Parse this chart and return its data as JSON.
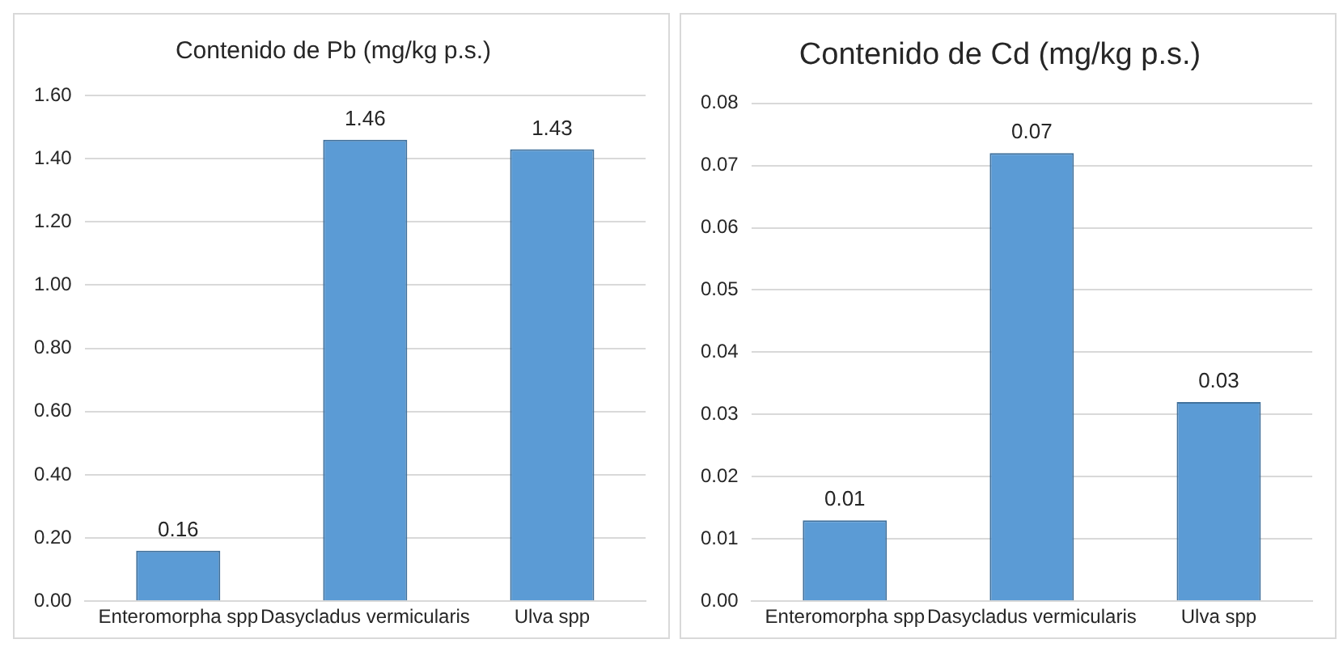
{
  "chart_data": [
    {
      "type": "bar",
      "title": "Contenido de Pb (mg/kg p.s.)",
      "categories": [
        "Enteromorpha spp",
        "Dasycladus vermicularis",
        "Ulva spp"
      ],
      "values": [
        0.16,
        1.46,
        1.43
      ],
      "color": "#5b9bd5",
      "data_labels": true,
      "ylim": [
        0,
        1.6
      ],
      "yticks": [
        {
          "value": 0,
          "label": "0.00"
        },
        {
          "value": 0.2,
          "label": "0.20"
        },
        {
          "value": 0.4,
          "label": "0.40"
        },
        {
          "value": 0.6,
          "label": "0.60"
        },
        {
          "value": 0.8,
          "label": "0.80"
        },
        {
          "value": 1,
          "label": "1.00"
        },
        {
          "value": 1.2,
          "label": "1.20"
        },
        {
          "value": 1.4,
          "label": "1.40"
        },
        {
          "value": 1.6,
          "label": "1.60"
        }
      ],
      "grid": "y"
    },
    {
      "type": "bar",
      "title": "Contenido de Cd (mg/kg p.s.)",
      "categories": [
        "Enteromorpha spp",
        "Dasycladus vermicularis",
        "Ulva spp"
      ],
      "values": [
        0.013,
        0.072,
        0.032
      ],
      "value_labels": [
        "0.01",
        "0.07",
        "0.03"
      ],
      "color": "#5b9bd5",
      "ylim": [
        0,
        0.08
      ],
      "yticks": [
        {
          "value": 0,
          "label": "0.00"
        },
        {
          "value": 0.01,
          "label": "0.01"
        },
        {
          "value": 0.02,
          "label": "0.02"
        },
        {
          "value": 0.03,
          "label": "0.03"
        },
        {
          "value": 0.04,
          "label": "0.04"
        },
        {
          "value": 0.05,
          "label": "0.05"
        },
        {
          "value": 0.06,
          "label": "0.06"
        },
        {
          "value": 0.07,
          "label": "0.07"
        },
        {
          "value": 0.08,
          "label": "0.08"
        }
      ],
      "grid": "y"
    }
  ]
}
